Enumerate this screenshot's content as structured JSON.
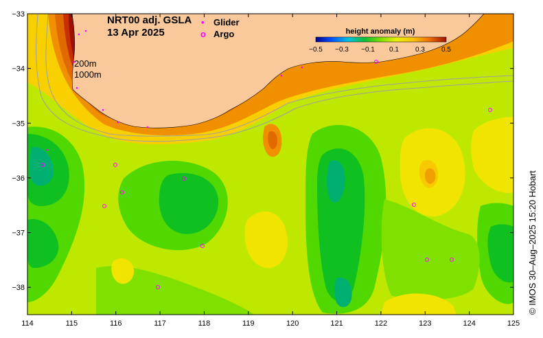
{
  "map": {
    "title_line1": "NRT00 adj. GSLA",
    "title_line2": "13 Apr 2025",
    "legend": {
      "glider_label": "Glider",
      "glider_marker": "•",
      "argo_label": "Argo",
      "argo_marker": "o"
    },
    "contour_labels": [
      "200m",
      "1000m"
    ],
    "credit": "© IMOS 30–Aug–2025 15:20 Hobart",
    "colorbar": {
      "title": "height anomaly (m)",
      "ticks": [
        "−0.5",
        "−0.3",
        "−0.1",
        "0.1",
        "0.3",
        "0.5"
      ],
      "range": [
        -0.5,
        0.5
      ]
    },
    "x_ticks": [
      "114",
      "115",
      "116",
      "117",
      "118",
      "119",
      "120",
      "121",
      "122",
      "123",
      "124",
      "125"
    ],
    "y_ticks": [
      "−33",
      "−34",
      "−35",
      "−36",
      "−37",
      "−38"
    ],
    "extent": {
      "lon": [
        114,
        125
      ],
      "lat": [
        -38.5,
        -33
      ]
    },
    "colors": {
      "land": "#f9c99b",
      "glider": "#ff00ff",
      "argo": "#ff00ff",
      "isobath": "#a0a0a0",
      "scale": [
        "#00008f",
        "#0060ff",
        "#00c8c8",
        "#10c020",
        "#60e000",
        "#d8f000",
        "#f8d000",
        "#f08000",
        "#d84800",
        "#a01000"
      ]
    }
  }
}
